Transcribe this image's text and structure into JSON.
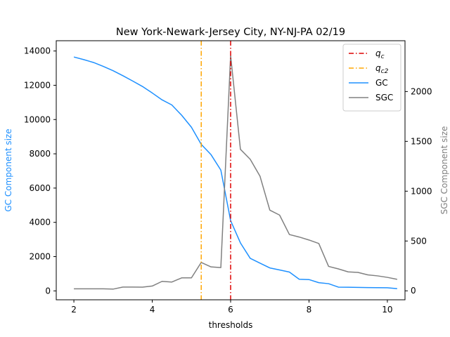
{
  "chart_data": {
    "type": "line",
    "title": "New York-Newark-Jersey City, NY-NJ-PA 02/19",
    "xlabel": "thresholds",
    "ylabel_left": "GC Component size",
    "ylabel_right": "SGC Component size",
    "xlim": [
      1.55,
      10.45
    ],
    "ylim_left": [
      -520,
      14600
    ],
    "ylim_right": [
      -90,
      2510
    ],
    "x_ticks": [
      2,
      4,
      6,
      8,
      10
    ],
    "y_ticks_left": [
      0,
      2000,
      4000,
      6000,
      8000,
      10000,
      12000,
      14000
    ],
    "y_ticks_right": [
      0,
      500,
      1000,
      1500,
      2000
    ],
    "grid": false,
    "legend_position": "top-right",
    "colors": {
      "gc": "#1e90ff",
      "sgc": "#808080",
      "qc": "#dd0000",
      "qc2": "#ffa500",
      "gc_label": "#1e90ff",
      "sgc_label": "#808080"
    },
    "lines": {
      "qc": 6.0,
      "qc2": 5.25
    },
    "legend": [
      {
        "key": "qc",
        "base": "q",
        "sub": "c"
      },
      {
        "key": "qc2",
        "base": "q",
        "sub": "c2"
      },
      {
        "key": "gc",
        "label": "GC"
      },
      {
        "key": "sgc",
        "label": "SGC"
      }
    ],
    "series": [
      {
        "key": "gc",
        "name": "GC",
        "axis": "left",
        "x": [
          2.0,
          2.25,
          2.5,
          2.75,
          3.0,
          3.25,
          3.5,
          3.75,
          4.0,
          4.25,
          4.5,
          4.75,
          5.0,
          5.25,
          5.5,
          5.75,
          6.0,
          6.25,
          6.5,
          6.75,
          7.0,
          7.25,
          7.5,
          7.75,
          8.0,
          8.25,
          8.5,
          8.75,
          9.0,
          9.25,
          9.5,
          9.75,
          10.0,
          10.25
        ],
        "y": [
          13650,
          13500,
          13330,
          13100,
          12850,
          12560,
          12250,
          11930,
          11550,
          11150,
          10850,
          10250,
          9550,
          8550,
          7950,
          7050,
          4100,
          2800,
          1900,
          1620,
          1340,
          1220,
          1100,
          680,
          660,
          480,
          420,
          220,
          210,
          200,
          190,
          185,
          180,
          130
        ]
      },
      {
        "key": "sgc",
        "name": "SGC",
        "axis": "right",
        "x": [
          2.0,
          2.25,
          2.5,
          2.75,
          3.0,
          3.25,
          3.5,
          3.75,
          4.0,
          4.25,
          4.5,
          4.75,
          5.0,
          5.25,
          5.5,
          5.75,
          6.0,
          6.25,
          6.5,
          6.75,
          7.0,
          7.25,
          7.5,
          7.75,
          8.0,
          8.25,
          8.5,
          8.75,
          9.0,
          9.25,
          9.5,
          9.75,
          10.0,
          10.25
        ],
        "y": [
          20,
          20,
          20,
          20,
          17,
          38,
          38,
          37,
          48,
          95,
          88,
          130,
          130,
          285,
          240,
          233,
          2360,
          1420,
          1320,
          1150,
          810,
          760,
          565,
          540,
          510,
          475,
          245,
          220,
          190,
          185,
          160,
          150,
          135,
          115
        ]
      }
    ]
  }
}
